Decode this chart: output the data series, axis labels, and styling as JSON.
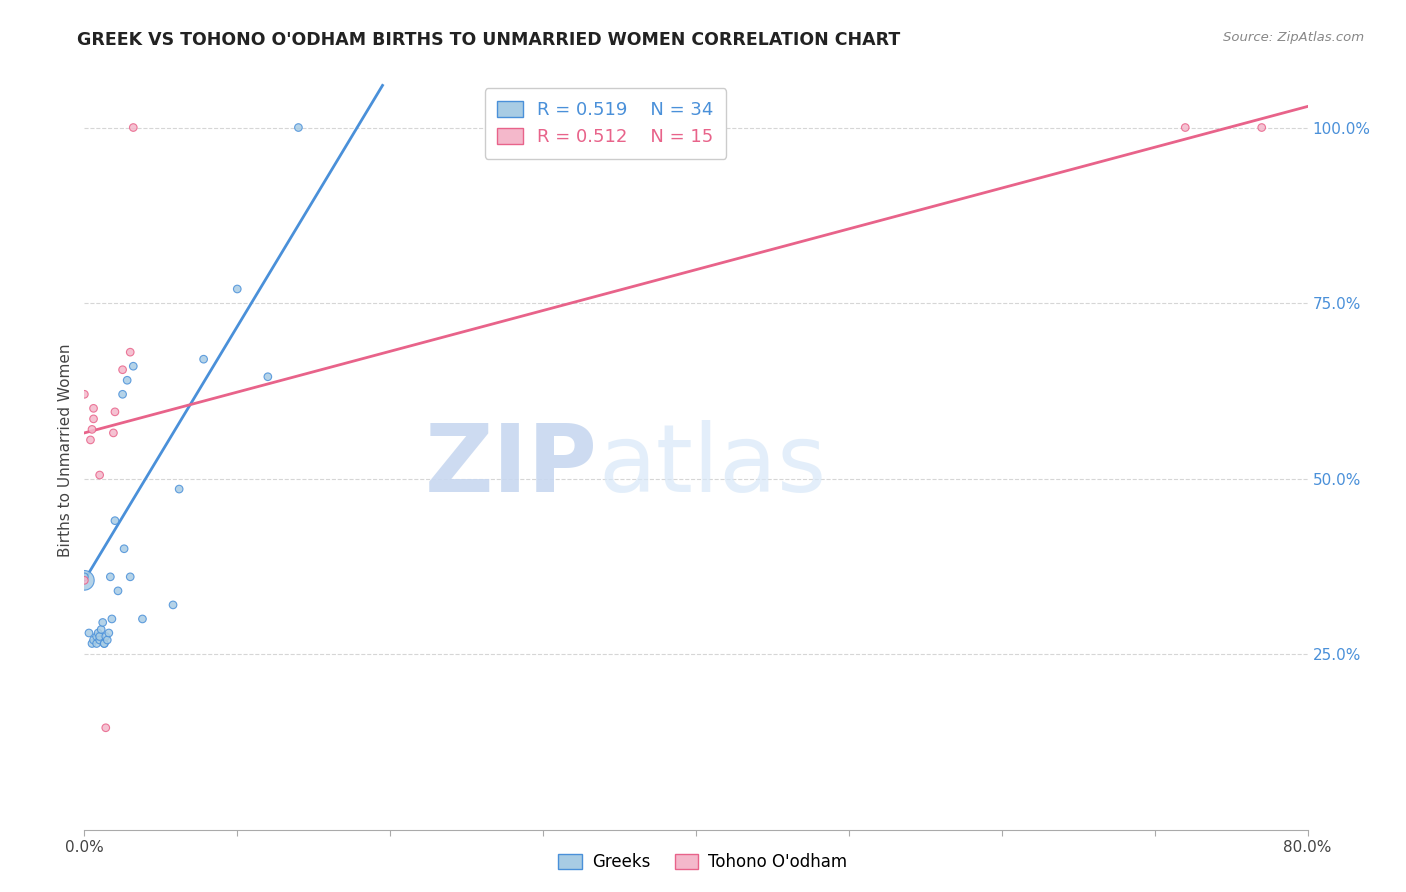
{
  "title": "GREEK VS TOHONO O'ODHAM BIRTHS TO UNMARRIED WOMEN CORRELATION CHART",
  "source": "Source: ZipAtlas.com",
  "ylabel": "Births to Unmarried Women",
  "xlim": [
    0.0,
    0.8
  ],
  "ylim": [
    0.0,
    1.08
  ],
  "x_ticks": [
    0.0,
    0.1,
    0.2,
    0.3,
    0.4,
    0.5,
    0.6,
    0.7,
    0.8
  ],
  "x_tick_labels": [
    "0.0%",
    "",
    "",
    "",
    "",
    "",
    "",
    "",
    "80.0%"
  ],
  "y_ticks": [
    0.25,
    0.5,
    0.75,
    1.0
  ],
  "y_tick_labels": [
    "25.0%",
    "50.0%",
    "75.0%",
    "100.0%"
  ],
  "blue_R": "0.519",
  "blue_N": "34",
  "pink_R": "0.512",
  "pink_N": "15",
  "blue_color": "#a8cce4",
  "pink_color": "#f4b8cb",
  "blue_line_color": "#4a90d9",
  "pink_line_color": "#e8638a",
  "watermark_zip": "ZIP",
  "watermark_atlas": "atlas",
  "blue_line_x0": 0.0,
  "blue_line_y0": 0.355,
  "blue_line_x1": 0.195,
  "blue_line_y1": 1.06,
  "pink_line_x0": 0.0,
  "pink_line_y0": 0.565,
  "pink_line_x1": 0.8,
  "pink_line_y1": 1.03,
  "blue_points_x": [
    0.0,
    0.0,
    0.003,
    0.005,
    0.006,
    0.008,
    0.008,
    0.009,
    0.01,
    0.01,
    0.011,
    0.012,
    0.013,
    0.013,
    0.014,
    0.015,
    0.016,
    0.017,
    0.018,
    0.02,
    0.022,
    0.025,
    0.026,
    0.028,
    0.03,
    0.032,
    0.038,
    0.058,
    0.062,
    0.078,
    0.1,
    0.12,
    0.14,
    0.38
  ],
  "blue_points_y": [
    0.355,
    0.36,
    0.28,
    0.265,
    0.27,
    0.265,
    0.275,
    0.28,
    0.27,
    0.275,
    0.285,
    0.295,
    0.265,
    0.265,
    0.275,
    0.27,
    0.28,
    0.36,
    0.3,
    0.44,
    0.34,
    0.62,
    0.4,
    0.64,
    0.36,
    0.66,
    0.3,
    0.32,
    0.485,
    0.67,
    0.77,
    0.645,
    1.0,
    1.0
  ],
  "blue_sizes": [
    200,
    30,
    30,
    30,
    30,
    30,
    30,
    30,
    30,
    30,
    30,
    30,
    30,
    30,
    30,
    30,
    30,
    30,
    30,
    30,
    30,
    30,
    30,
    30,
    30,
    30,
    30,
    30,
    30,
    30,
    30,
    30,
    30,
    30
  ],
  "pink_points_x": [
    0.0,
    0.0,
    0.004,
    0.005,
    0.006,
    0.006,
    0.01,
    0.014,
    0.019,
    0.02,
    0.025,
    0.03,
    0.032,
    0.72,
    0.77
  ],
  "pink_points_y": [
    0.355,
    0.62,
    0.555,
    0.57,
    0.585,
    0.6,
    0.505,
    0.145,
    0.565,
    0.595,
    0.655,
    0.68,
    1.0,
    1.0,
    1.0
  ],
  "pink_sizes": [
    30,
    30,
    30,
    30,
    30,
    30,
    30,
    30,
    30,
    30,
    30,
    30,
    30,
    30,
    30
  ]
}
